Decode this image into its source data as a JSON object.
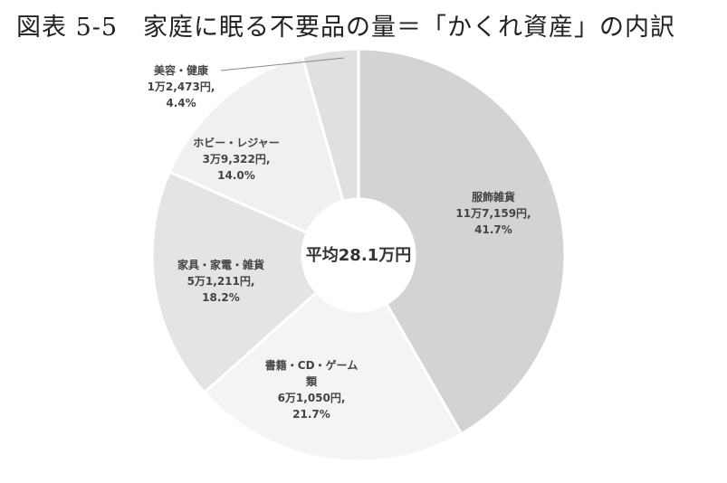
{
  "figure": {
    "title": "図表 5-5　家庭に眠る不要品の量＝「かくれ資産」の内訳"
  },
  "chart_data": {
    "type": "pie",
    "style": "donut",
    "start": "top",
    "direction": "clockwise",
    "center_label": "平均28.1万円",
    "slices": [
      {
        "name_lines": [
          "服飾雑貨"
        ],
        "amount": "11万7,159円,",
        "percent": 41.7,
        "percent_label": "41.7%",
        "color": "#d3d3d3"
      },
      {
        "name_lines": [
          "書籍・CD・ゲーム",
          "類"
        ],
        "amount": "6万1,050円,",
        "percent": 21.7,
        "percent_label": "21.7%",
        "color": "#f4f4f4"
      },
      {
        "name_lines": [
          "家具・家電・雑貨"
        ],
        "amount": "5万1,211円,",
        "percent": 18.2,
        "percent_label": "18.2%",
        "color": "#e4e4e4"
      },
      {
        "name_lines": [
          "ホビー・レジャー"
        ],
        "amount": "3万9,322円,",
        "percent": 14.0,
        "percent_label": "14.0%",
        "color": "#f0f0f0"
      },
      {
        "name_lines": [
          "美容・健康"
        ],
        "amount": "1万2,473円,",
        "percent": 4.4,
        "percent_label": "4.4%",
        "color": "#e0e0e0"
      }
    ]
  }
}
